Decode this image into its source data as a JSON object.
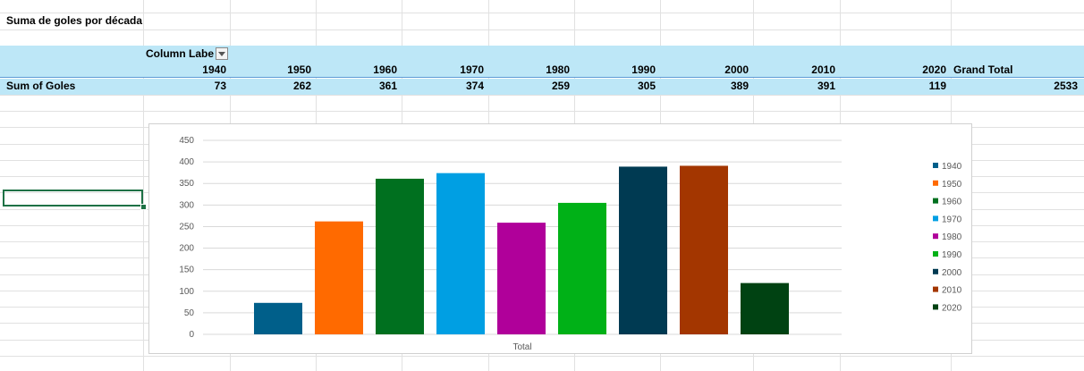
{
  "sheet": {
    "title": "Suma de goles por década",
    "column_labels": "Column Labe",
    "row_label": "Sum of Goles",
    "grand_total_label": "Grand Total",
    "decades": [
      "1940",
      "1950",
      "1960",
      "1970",
      "1980",
      "1990",
      "2000",
      "2010",
      "2020"
    ],
    "sums": [
      "73",
      "262",
      "361",
      "374",
      "259",
      "305",
      "389",
      "391",
      "119"
    ],
    "grand_total": "2533"
  },
  "chart_data": {
    "type": "bar",
    "categories": [
      "Total"
    ],
    "xlabel": "Total",
    "ylim": [
      0,
      450
    ],
    "yticks": [
      0,
      50,
      100,
      150,
      200,
      250,
      300,
      350,
      400,
      450
    ],
    "grid": true,
    "legend": "right",
    "series": [
      {
        "name": "1940",
        "value": 73,
        "color": "#005f8a"
      },
      {
        "name": "1950",
        "value": 262,
        "color": "#ff6a00"
      },
      {
        "name": "1960",
        "value": 361,
        "color": "#00701f"
      },
      {
        "name": "1970",
        "value": 374,
        "color": "#009fe3"
      },
      {
        "name": "1980",
        "value": 259,
        "color": "#b0009a"
      },
      {
        "name": "1990",
        "value": 305,
        "color": "#00b117"
      },
      {
        "name": "2000",
        "value": 389,
        "color": "#003a52"
      },
      {
        "name": "2010",
        "value": 391,
        "color": "#a33600"
      },
      {
        "name": "2020",
        "value": 119,
        "color": "#004212"
      }
    ]
  }
}
